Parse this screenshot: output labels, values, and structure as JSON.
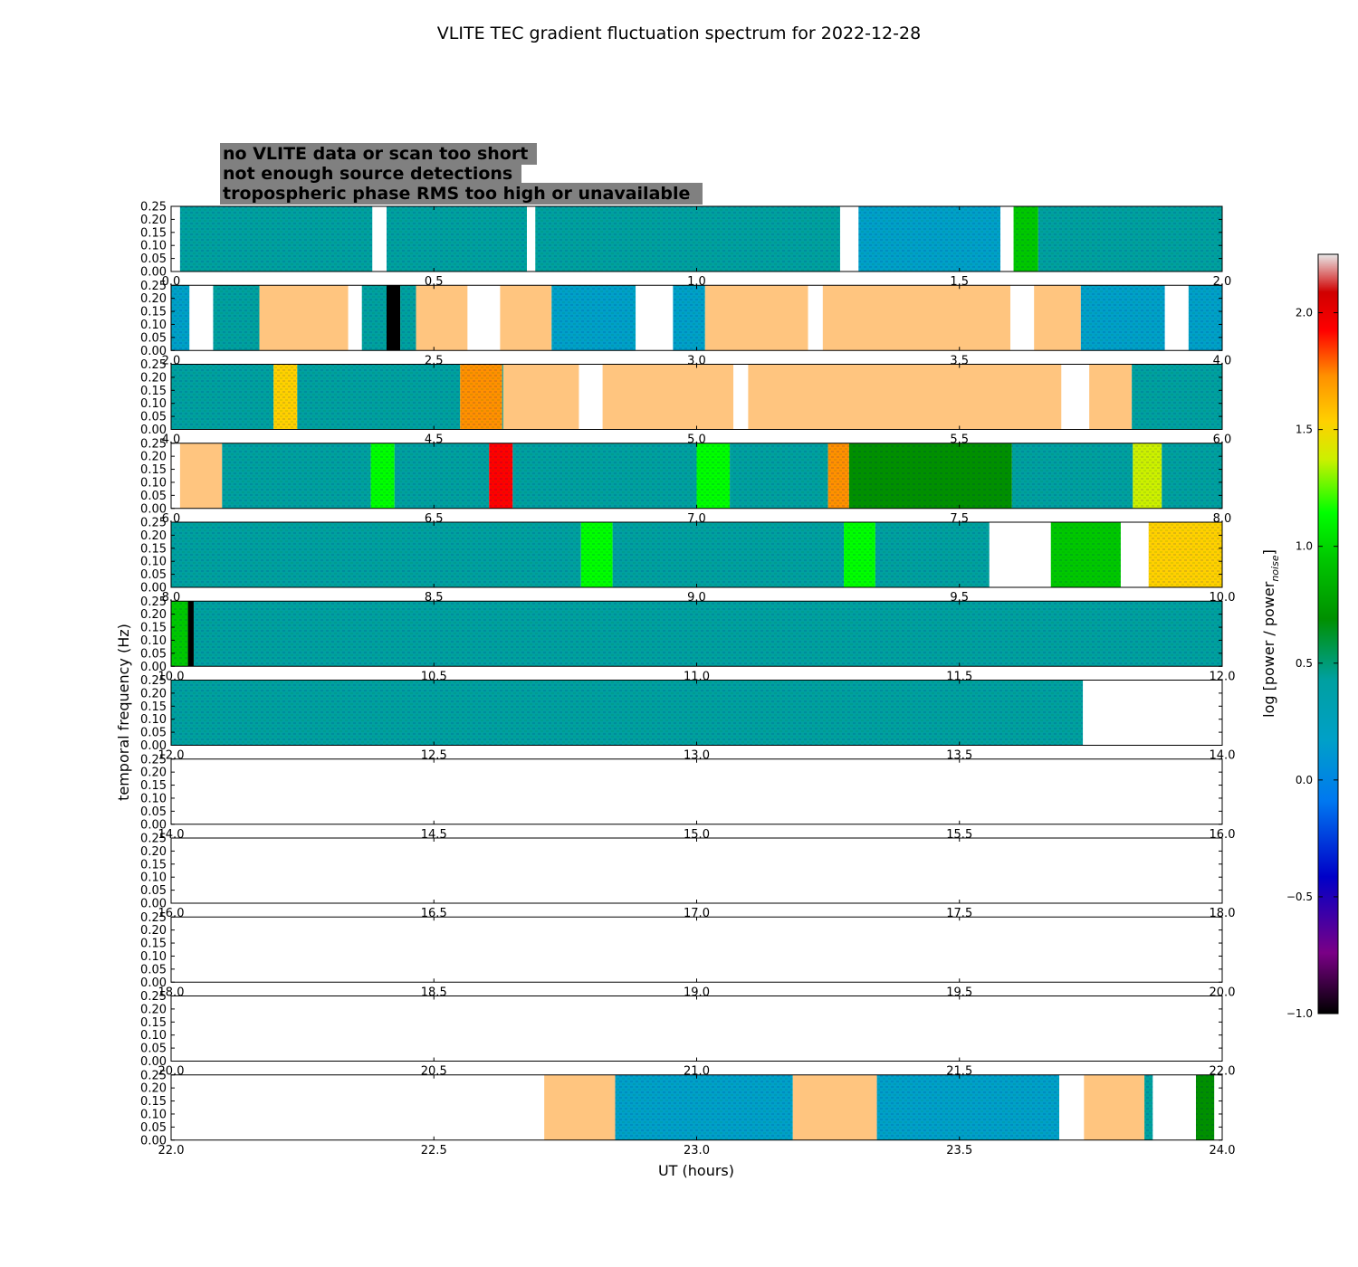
{
  "chart_data": {
    "type": "heatmap",
    "title": "VLITE TEC gradient fluctuation spectrum for 2022-12-28",
    "xlabel": "UT (hours)",
    "ylabel": "temporal frequency (Hz)",
    "ylim": [
      0,
      0.25
    ],
    "y_ticks": [
      "0.00",
      "0.05",
      "0.10",
      "0.15",
      "0.20",
      "0.25"
    ],
    "colorbar": {
      "label": "log [power / power",
      "label_subscript": "noise",
      "label_suffix": "]",
      "range": [
        -1.0,
        2.25
      ],
      "ticks": [
        "−1.0",
        "−0.5",
        "0.0",
        "0.5",
        "1.0",
        "1.5",
        "2.0"
      ],
      "tick_values": [
        -1.0,
        -0.5,
        0.0,
        0.5,
        1.0,
        1.5,
        2.0
      ]
    },
    "legend": [
      {
        "label": "no VLITE data or scan too short",
        "color": "#ffffff",
        "key": "nodata"
      },
      {
        "label": "not enough source detections",
        "color": "#000000",
        "key": "detect"
      },
      {
        "label": "tropospheric phase RMS too high or unavailable",
        "color": "#ffc57f",
        "key": "tropo"
      }
    ],
    "legend_background": "#808080",
    "segment_colors": {
      "nodata": "#ffffff",
      "detect": "#000000",
      "tropo": "#ffc57f"
    },
    "panels": [
      {
        "start": 0,
        "end": 2,
        "ticks": [
          "0.0",
          "0.5",
          "1.0",
          "1.5",
          "2.0"
        ],
        "segments": [
          {
            "from": 0.0,
            "to": 0.017,
            "kind": "nodata"
          },
          {
            "from": 0.017,
            "to": 0.383,
            "kind": "data",
            "level": 0.1
          },
          {
            "from": 0.383,
            "to": 0.41,
            "kind": "nodata"
          },
          {
            "from": 0.41,
            "to": 0.677,
            "kind": "data",
            "level": 0.1
          },
          {
            "from": 0.677,
            "to": 0.693,
            "kind": "nodata"
          },
          {
            "from": 0.693,
            "to": 1.273,
            "kind": "data",
            "level": 0.15
          },
          {
            "from": 1.273,
            "to": 1.308,
            "kind": "nodata"
          },
          {
            "from": 1.308,
            "to": 1.578,
            "kind": "data",
            "level": 0.05
          },
          {
            "from": 1.578,
            "to": 1.603,
            "kind": "nodata"
          },
          {
            "from": 1.603,
            "to": 1.65,
            "kind": "data",
            "level": 0.8
          },
          {
            "from": 1.65,
            "to": 2.0,
            "kind": "data",
            "level": 0.1
          }
        ]
      },
      {
        "start": 2,
        "end": 4,
        "ticks": [
          "2.0",
          "2.5",
          "3.0",
          "3.5",
          "4.0"
        ],
        "segments": [
          {
            "from": 2.0,
            "to": 2.035,
            "kind": "data",
            "level": 0.05
          },
          {
            "from": 2.035,
            "to": 2.08,
            "kind": "nodata"
          },
          {
            "from": 2.08,
            "to": 2.168,
            "kind": "data",
            "level": 0.15
          },
          {
            "from": 2.168,
            "to": 2.337,
            "kind": "tropo"
          },
          {
            "from": 2.337,
            "to": 2.363,
            "kind": "nodata"
          },
          {
            "from": 2.363,
            "to": 2.41,
            "kind": "data",
            "level": 0.2
          },
          {
            "from": 2.41,
            "to": 2.436,
            "kind": "detect"
          },
          {
            "from": 2.436,
            "to": 2.466,
            "kind": "data",
            "level": 0.1
          },
          {
            "from": 2.466,
            "to": 2.564,
            "kind": "tropo"
          },
          {
            "from": 2.564,
            "to": 2.626,
            "kind": "nodata"
          },
          {
            "from": 2.626,
            "to": 2.724,
            "kind": "tropo"
          },
          {
            "from": 2.724,
            "to": 2.884,
            "kind": "data",
            "level": 0.0
          },
          {
            "from": 2.884,
            "to": 2.955,
            "kind": "nodata"
          },
          {
            "from": 2.955,
            "to": 3.016,
            "kind": "data",
            "level": 0.05
          },
          {
            "from": 3.016,
            "to": 3.212,
            "kind": "tropo"
          },
          {
            "from": 3.212,
            "to": 3.24,
            "kind": "nodata"
          },
          {
            "from": 3.24,
            "to": 3.597,
            "kind": "tropo"
          },
          {
            "from": 3.597,
            "to": 3.642,
            "kind": "nodata"
          },
          {
            "from": 3.642,
            "to": 3.731,
            "kind": "tropo"
          },
          {
            "from": 3.731,
            "to": 3.891,
            "kind": "data",
            "level": 0.0
          },
          {
            "from": 3.891,
            "to": 3.936,
            "kind": "nodata"
          },
          {
            "from": 3.936,
            "to": 4.0,
            "kind": "data",
            "level": 0.05
          }
        ]
      },
      {
        "start": 4,
        "end": 6,
        "ticks": [
          "4.0",
          "4.5",
          "5.0",
          "5.5",
          "6.0"
        ],
        "segments": [
          {
            "from": 4.0,
            "to": 4.195,
            "kind": "data",
            "level": 0.3
          },
          {
            "from": 4.195,
            "to": 4.24,
            "kind": "data",
            "level": 1.4
          },
          {
            "from": 4.24,
            "to": 4.55,
            "kind": "data",
            "level": 0.15
          },
          {
            "from": 4.55,
            "to": 4.63,
            "kind": "data",
            "level": 1.5
          },
          {
            "from": 4.63,
            "to": 4.632,
            "kind": "data",
            "level": 0.3
          },
          {
            "from": 4.632,
            "to": 4.776,
            "kind": "tropo"
          },
          {
            "from": 4.776,
            "to": 4.821,
            "kind": "nodata"
          },
          {
            "from": 4.821,
            "to": 5.07,
            "kind": "tropo"
          },
          {
            "from": 5.07,
            "to": 5.098,
            "kind": "nodata"
          },
          {
            "from": 5.098,
            "to": 5.694,
            "kind": "tropo"
          },
          {
            "from": 5.694,
            "to": 5.747,
            "kind": "nodata"
          },
          {
            "from": 5.747,
            "to": 5.828,
            "kind": "tropo"
          },
          {
            "from": 5.828,
            "to": 6.0,
            "kind": "data",
            "level": 0.15
          }
        ]
      },
      {
        "start": 6,
        "end": 8,
        "ticks": [
          "6.0",
          "6.5",
          "7.0",
          "7.5",
          "8.0"
        ],
        "segments": [
          {
            "from": 6.0,
            "to": 6.017,
            "kind": "nodata"
          },
          {
            "from": 6.017,
            "to": 6.097,
            "kind": "tropo"
          },
          {
            "from": 6.097,
            "to": 6.38,
            "kind": "data",
            "level": 0.3
          },
          {
            "from": 6.38,
            "to": 6.425,
            "kind": "data",
            "level": 0.9
          },
          {
            "from": 6.425,
            "to": 6.605,
            "kind": "data",
            "level": 0.2
          },
          {
            "from": 6.605,
            "to": 6.65,
            "kind": "data",
            "level": 1.7
          },
          {
            "from": 6.65,
            "to": 7.0,
            "kind": "data",
            "level": 0.3
          },
          {
            "from": 7.0,
            "to": 7.063,
            "kind": "data",
            "level": 0.9
          },
          {
            "from": 7.063,
            "to": 7.25,
            "kind": "data",
            "level": 0.1
          },
          {
            "from": 7.25,
            "to": 7.29,
            "kind": "data",
            "level": 1.6
          },
          {
            "from": 7.29,
            "to": 7.6,
            "kind": "data",
            "level": 0.4
          },
          {
            "from": 7.6,
            "to": 7.83,
            "kind": "data",
            "level": 0.3
          },
          {
            "from": 7.83,
            "to": 7.885,
            "kind": "data",
            "level": 1.2
          },
          {
            "from": 7.885,
            "to": 8.0,
            "kind": "data",
            "level": 0.2
          }
        ]
      },
      {
        "start": 8,
        "end": 10,
        "ticks": [
          "8.0",
          "8.5",
          "9.0",
          "9.5",
          "10.0"
        ],
        "segments": [
          {
            "from": 8.0,
            "to": 8.78,
            "kind": "data",
            "level": 0.15
          },
          {
            "from": 8.78,
            "to": 8.84,
            "kind": "data",
            "level": 1.0
          },
          {
            "from": 8.84,
            "to": 9.28,
            "kind": "data",
            "level": 0.15
          },
          {
            "from": 9.28,
            "to": 9.34,
            "kind": "data",
            "level": 0.9
          },
          {
            "from": 9.34,
            "to": 9.557,
            "kind": "data",
            "level": 0.2
          },
          {
            "from": 9.557,
            "to": 9.674,
            "kind": "nodata"
          },
          {
            "from": 9.674,
            "to": 9.807,
            "kind": "data",
            "level": 0.6
          },
          {
            "from": 9.807,
            "to": 9.86,
            "kind": "nodata"
          },
          {
            "from": 9.86,
            "to": 10.0,
            "kind": "data",
            "level": 1.3
          }
        ]
      },
      {
        "start": 10,
        "end": 12,
        "ticks": [
          "10.0",
          "10.5",
          "11.0",
          "11.5",
          "12.0"
        ],
        "segments": [
          {
            "from": 10.0,
            "to": 10.032,
            "kind": "data",
            "level": 0.6
          },
          {
            "from": 10.032,
            "to": 10.043,
            "kind": "detect"
          },
          {
            "from": 10.043,
            "to": 12.0,
            "kind": "data",
            "level": 0.1
          }
        ]
      },
      {
        "start": 12,
        "end": 14,
        "ticks": [
          "12.0",
          "12.5",
          "13.0",
          "13.5",
          "14.0"
        ],
        "segments": [
          {
            "from": 12.0,
            "to": 13.735,
            "kind": "data",
            "level": 0.1
          },
          {
            "from": 13.735,
            "to": 14.0,
            "kind": "nodata"
          }
        ]
      },
      {
        "start": 14,
        "end": 16,
        "ticks": [
          "14.0",
          "14.5",
          "15.0",
          "15.5",
          "16.0"
        ],
        "segments": []
      },
      {
        "start": 16,
        "end": 18,
        "ticks": [
          "16.0",
          "16.5",
          "17.0",
          "17.5",
          "18.0"
        ],
        "segments": []
      },
      {
        "start": 18,
        "end": 20,
        "ticks": [
          "18.0",
          "18.5",
          "19.0",
          "19.5",
          "20.0"
        ],
        "segments": []
      },
      {
        "start": 20,
        "end": 22,
        "ticks": [
          "20.0",
          "20.5",
          "21.0",
          "21.5",
          "22.0"
        ],
        "segments": []
      },
      {
        "start": 22,
        "end": 24,
        "ticks": [
          "22.0",
          "22.5",
          "23.0",
          "23.5",
          "24.0"
        ],
        "segments": [
          {
            "from": 22.0,
            "to": 22.71,
            "kind": "nodata"
          },
          {
            "from": 22.71,
            "to": 22.845,
            "kind": "tropo"
          },
          {
            "from": 22.845,
            "to": 23.183,
            "kind": "data",
            "level": 0.05
          },
          {
            "from": 23.183,
            "to": 23.343,
            "kind": "tropo"
          },
          {
            "from": 23.343,
            "to": 23.69,
            "kind": "data",
            "level": 0.05
          },
          {
            "from": 23.69,
            "to": 23.737,
            "kind": "nodata"
          },
          {
            "from": 23.737,
            "to": 23.852,
            "kind": "tropo"
          },
          {
            "from": 23.852,
            "to": 23.868,
            "kind": "data",
            "level": 0.2
          },
          {
            "from": 23.868,
            "to": 23.95,
            "kind": "nodata"
          },
          {
            "from": 23.95,
            "to": 23.985,
            "kind": "data",
            "level": 0.4
          },
          {
            "from": 23.985,
            "to": 24.0,
            "kind": "nodata"
          }
        ]
      }
    ]
  }
}
